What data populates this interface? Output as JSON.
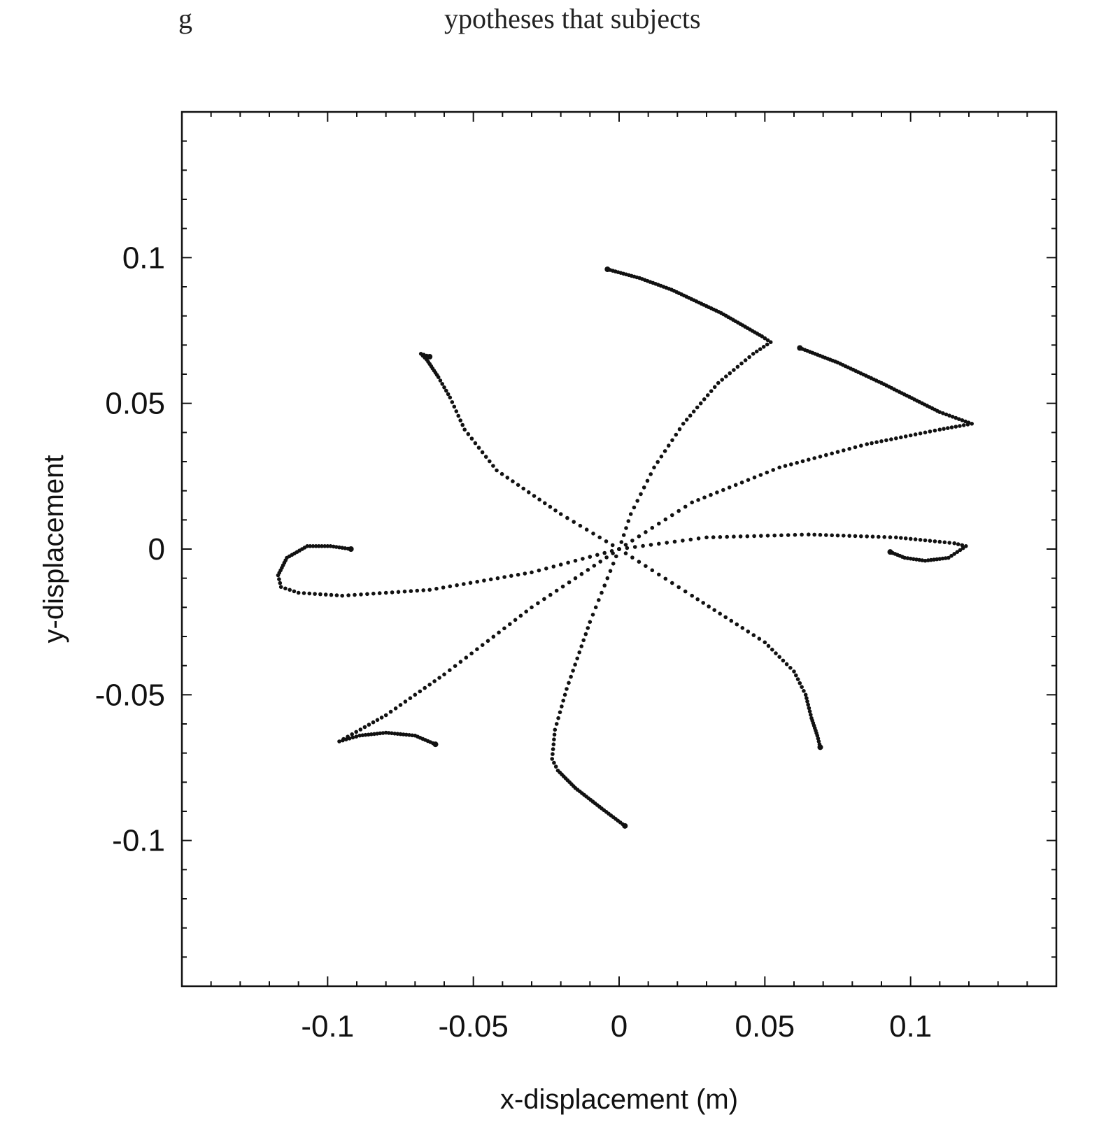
{
  "page_header_fragment": "g                                    ypotheses that subjects",
  "chart_data": {
    "type": "scatter",
    "title": "",
    "xlabel": "x-displacement (m)",
    "ylabel": "y-displacement",
    "xlim": [
      -0.15,
      0.15
    ],
    "ylim": [
      -0.15,
      0.15
    ],
    "xticks": [
      -0.1,
      -0.05,
      0,
      0.05,
      0.1
    ],
    "xtick_labels": [
      "-0.1",
      "-0.05",
      "0",
      "0.05",
      "0.1"
    ],
    "yticks": [
      0.1,
      0.05,
      0,
      -0.05,
      -0.1
    ],
    "ytick_labels": [
      "0.1",
      "0.05",
      "0",
      "-0.05",
      "-0.1"
    ],
    "grid": false,
    "legend": "none",
    "color": "#111111",
    "series": [
      {
        "x": [
          0,
          0.004,
          0.012,
          0.022,
          0.034,
          0.046,
          0.052,
          0.049,
          0.035,
          0.018,
          0.007,
          -0.004
        ],
        "y": [
          0,
          0.012,
          0.028,
          0.043,
          0.057,
          0.067,
          0.071,
          0.073,
          0.081,
          0.089,
          0.093,
          0.096
        ]
      },
      {
        "x": [
          0,
          0.025,
          0.055,
          0.085,
          0.11,
          0.121,
          0.11,
          0.09,
          0.075,
          0.062
        ],
        "y": [
          0,
          0.016,
          0.028,
          0.036,
          0.041,
          0.043,
          0.047,
          0.057,
          0.064,
          0.069
        ]
      },
      {
        "x": [
          0,
          0.03,
          0.065,
          0.095,
          0.115,
          0.119,
          0.113,
          0.105,
          0.098,
          0.093
        ],
        "y": [
          0,
          0.004,
          0.005,
          0.004,
          0.002,
          0.001,
          -0.003,
          -0.004,
          -0.003,
          -0.001
        ]
      },
      {
        "x": [
          0,
          0.025,
          0.05,
          0.06,
          0.064,
          0.066,
          0.068,
          0.069
        ],
        "y": [
          0,
          -0.016,
          -0.032,
          -0.042,
          -0.05,
          -0.058,
          -0.064,
          -0.068
        ]
      },
      {
        "x": [
          0,
          -0.01,
          -0.018,
          -0.022,
          -0.023,
          -0.021,
          -0.015,
          -0.006,
          0.002
        ],
        "y": [
          0,
          -0.025,
          -0.048,
          -0.062,
          -0.072,
          -0.076,
          -0.082,
          -0.089,
          -0.095
        ]
      },
      {
        "x": [
          0,
          -0.03,
          -0.06,
          -0.08,
          -0.096,
          -0.089,
          -0.08,
          -0.07,
          -0.063
        ],
        "y": [
          0,
          -0.02,
          -0.043,
          -0.057,
          -0.066,
          -0.064,
          -0.063,
          -0.064,
          -0.067
        ]
      },
      {
        "x": [
          0,
          -0.03,
          -0.065,
          -0.095,
          -0.11,
          -0.116,
          -0.117,
          -0.114,
          -0.107,
          -0.099,
          -0.092
        ],
        "y": [
          0,
          -0.008,
          -0.014,
          -0.016,
          -0.015,
          -0.013,
          -0.009,
          -0.003,
          0.001,
          0.001,
          0
        ]
      },
      {
        "x": [
          0,
          -0.02,
          -0.042,
          -0.053,
          -0.058,
          -0.062,
          -0.066,
          -0.068,
          -0.065
        ],
        "y": [
          0,
          0.012,
          0.027,
          0.041,
          0.052,
          0.059,
          0.065,
          0.067,
          0.066
        ]
      }
    ]
  }
}
